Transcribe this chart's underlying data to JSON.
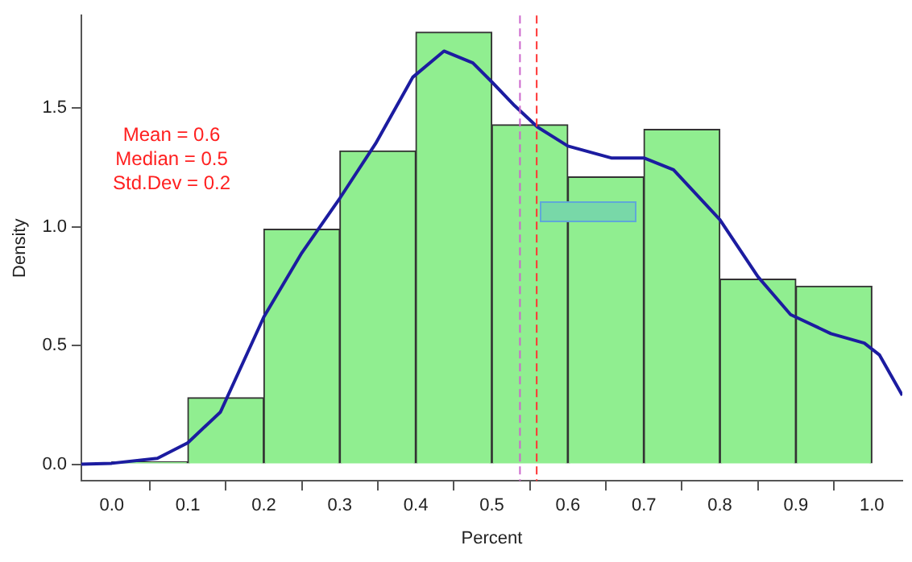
{
  "chart_data": {
    "type": "histogram",
    "xlabel": "Percent",
    "ylabel": "Density",
    "xlim": [
      -0.04,
      1.04
    ],
    "ylim": [
      -0.07,
      1.89
    ],
    "xticks": [
      {
        "value": 0,
        "label": "0.0"
      },
      0.1,
      0.2,
      0.3,
      0.4,
      0.5,
      0.6,
      0.7,
      0.8,
      0.9,
      {
        "value": 1,
        "label": "1.0"
      }
    ],
    "yticks": [
      {
        "value": 0,
        "label": "0.0"
      },
      0.5,
      {
        "value": 1,
        "label": "1.0"
      },
      1.5
    ],
    "series": [
      {
        "color": "#90ee90",
        "bins": [
          0,
          0.1,
          0.2,
          0.3,
          0.4,
          0.5,
          0.6,
          0.7,
          0.8,
          0.9,
          1.0
        ],
        "values": [
          0.01,
          0.28,
          0.99,
          1.32,
          1.82,
          1.43,
          1.21,
          1.41,
          0.78,
          0.75
        ]
      },
      {
        "type": "line",
        "color": "#1c1ca0",
        "x": [
          -0.04,
          0,
          0.06,
          0.1,
          0.143,
          0.2,
          0.25,
          0.3,
          0.347,
          0.396,
          0.437,
          0.475,
          0.5,
          0.53,
          0.56,
          0.6,
          0.657,
          0.7,
          0.739,
          0.8,
          0.85,
          0.893,
          0.946,
          0.99,
          1.01,
          1.04
        ],
        "values": [
          0,
          0.004,
          0.025,
          0.09,
          0.22,
          0.62,
          0.89,
          1.12,
          1.35,
          1.63,
          1.74,
          1.69,
          1.61,
          1.51,
          1.42,
          1.34,
          1.29,
          1.29,
          1.24,
          1.03,
          0.79,
          0.63,
          0.55,
          0.51,
          0.46,
          0.29
        ]
      }
    ],
    "ref_lines": [
      {
        "axis": "x",
        "value": 0.537,
        "color": "#cc66cc",
        "line_style": "dashed"
      },
      {
        "axis": "x",
        "value": 0.559,
        "color": "#ff3333",
        "line_style": "dashed"
      }
    ],
    "annotations": [
      "Mean = 0.6",
      "Median = 0.5",
      "Std.Dev = 0.2"
    ],
    "grid": false,
    "legend": false
  }
}
